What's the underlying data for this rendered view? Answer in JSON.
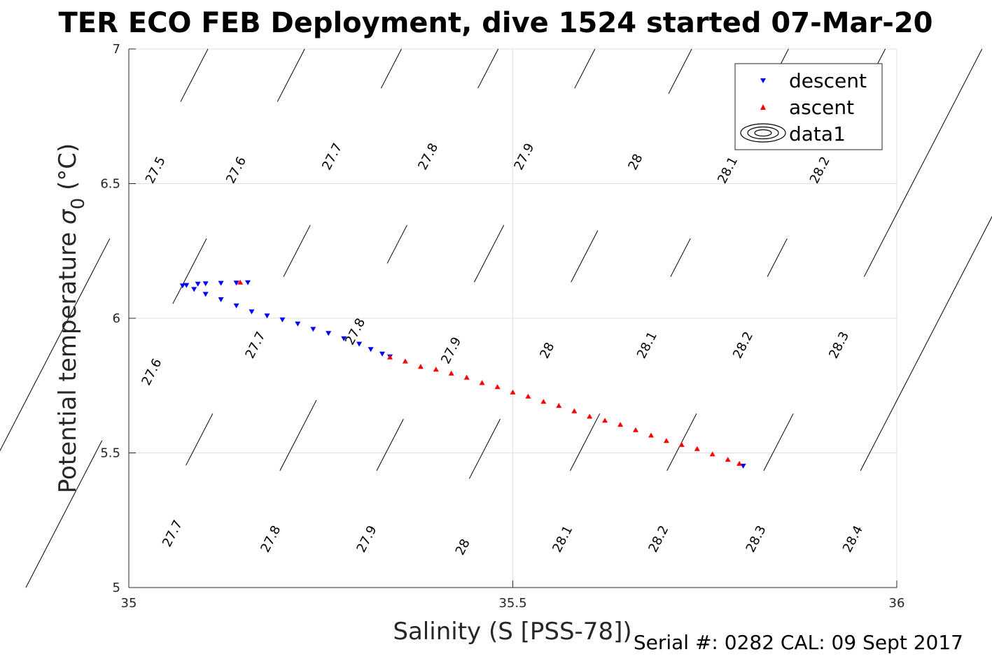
{
  "figure": {
    "title": "TER ECO FEB Deployment, dive 1524 started 07-Mar-20",
    "footer": "Serial #: 0282  CAL: 09 Sept 2017"
  },
  "chart_data": {
    "type": "scatter",
    "xlabel": "Salinity (S [PSS-78])",
    "ylabel_main": "Potential temperature ",
    "ylabel_sigma": "σ",
    "ylabel_sub": "0",
    "ylabel_unit": " (°C)",
    "xlim": [
      35,
      36
    ],
    "ylim": [
      5,
      7
    ],
    "xticks": [
      35,
      35.5,
      36
    ],
    "xtick_labels": [
      "35",
      "35.5",
      "36"
    ],
    "yticks": [
      5,
      5.5,
      6,
      6.5,
      7
    ],
    "ytick_labels": [
      "5",
      "5.5",
      "6",
      "6.5",
      "7"
    ],
    "grid": true,
    "legend_position": "top-right",
    "legend": [
      {
        "name": "descent",
        "marker": "triangle-down",
        "color": "#0000ff"
      },
      {
        "name": "ascent",
        "marker": "triangle-up",
        "color": "#ff0000"
      },
      {
        "name": "data1",
        "marker": "contour",
        "color": "#000000"
      }
    ],
    "colors": {
      "descent": "#0000ff",
      "ascent": "#ff0000",
      "contour": "#000000",
      "grid": "#e0e0e0"
    },
    "series": [
      {
        "name": "descent",
        "color": "#0000ff",
        "points": [
          [
            35.155,
            6.133
          ],
          [
            35.14,
            6.132
          ],
          [
            35.12,
            6.131
          ],
          [
            35.1,
            6.129
          ],
          [
            35.09,
            6.128
          ],
          [
            35.075,
            6.123
          ],
          [
            35.07,
            6.121
          ],
          [
            35.085,
            6.108
          ],
          [
            35.1,
            6.09
          ],
          [
            35.12,
            6.07
          ],
          [
            35.14,
            6.047
          ],
          [
            35.16,
            6.025
          ],
          [
            35.18,
            6.01
          ],
          [
            35.2,
            5.995
          ],
          [
            35.22,
            5.98
          ],
          [
            35.24,
            5.96
          ],
          [
            35.26,
            5.945
          ],
          [
            35.28,
            5.925
          ],
          [
            35.3,
            5.905
          ],
          [
            35.315,
            5.885
          ],
          [
            35.33,
            5.868
          ],
          [
            35.34,
            5.858
          ],
          [
            35.8,
            5.452
          ]
        ]
      },
      {
        "name": "ascent",
        "color": "#ff0000",
        "points": [
          [
            35.145,
            6.133
          ],
          [
            35.34,
            5.855
          ],
          [
            35.36,
            5.84
          ],
          [
            35.38,
            5.82
          ],
          [
            35.4,
            5.81
          ],
          [
            35.42,
            5.795
          ],
          [
            35.44,
            5.78
          ],
          [
            35.46,
            5.76
          ],
          [
            35.48,
            5.745
          ],
          [
            35.5,
            5.725
          ],
          [
            35.52,
            5.71
          ],
          [
            35.54,
            5.69
          ],
          [
            35.56,
            5.675
          ],
          [
            35.58,
            5.655
          ],
          [
            35.6,
            5.635
          ],
          [
            35.62,
            5.62
          ],
          [
            35.64,
            5.605
          ],
          [
            35.66,
            5.585
          ],
          [
            35.68,
            5.565
          ],
          [
            35.7,
            5.545
          ],
          [
            35.72,
            5.53
          ],
          [
            35.74,
            5.515
          ],
          [
            35.76,
            5.495
          ],
          [
            35.78,
            5.475
          ],
          [
            35.795,
            5.46
          ]
        ]
      }
    ],
    "contours": [
      {
        "level": "27.5",
        "x_bottom": 34.74,
        "x_top": 35.103,
        "labels": [
          [
            35.035,
            6.55
          ]
        ]
      },
      {
        "level": "27.6",
        "x_bottom": 34.866,
        "x_top": 35.229,
        "labels": [
          [
            35.14,
            6.55
          ],
          [
            35.03,
            5.8
          ]
        ]
      },
      {
        "level": "27.7",
        "x_bottom": 34.992,
        "x_top": 35.355,
        "labels": [
          [
            35.265,
            6.6
          ],
          [
            35.165,
            5.9
          ],
          [
            35.057,
            5.2
          ]
        ]
      },
      {
        "level": "27.8",
        "x_bottom": 35.118,
        "x_top": 35.481,
        "labels": [
          [
            35.39,
            6.6
          ],
          [
            35.295,
            5.95
          ],
          [
            35.185,
            5.18
          ]
        ]
      },
      {
        "level": "27.9",
        "x_bottom": 35.244,
        "x_top": 35.607,
        "labels": [
          [
            35.515,
            6.6
          ],
          [
            35.42,
            5.88
          ],
          [
            35.31,
            5.18
          ]
        ]
      },
      {
        "level": "28",
        "x_bottom": 35.37,
        "x_top": 35.733,
        "labels": [
          [
            35.66,
            6.58
          ],
          [
            35.545,
            5.88
          ],
          [
            35.435,
            5.15
          ]
        ]
      },
      {
        "level": "28.1",
        "x_bottom": 35.496,
        "x_top": 35.859,
        "labels": [
          [
            35.78,
            6.55
          ],
          [
            35.675,
            5.9
          ],
          [
            35.565,
            5.18
          ]
        ]
      },
      {
        "level": "28.2",
        "x_bottom": 35.622,
        "x_top": 35.985,
        "labels": [
          [
            35.9,
            6.55
          ],
          [
            35.8,
            5.9
          ],
          [
            35.69,
            5.18
          ]
        ]
      },
      {
        "level": "28.3",
        "x_bottom": 35.748,
        "x_top": 36.111,
        "labels": [
          [
            35.925,
            5.9
          ],
          [
            35.817,
            5.18
          ]
        ]
      },
      {
        "level": "28.4",
        "x_bottom": 35.874,
        "x_top": 36.237,
        "labels": [
          [
            35.943,
            5.18
          ]
        ]
      }
    ]
  }
}
